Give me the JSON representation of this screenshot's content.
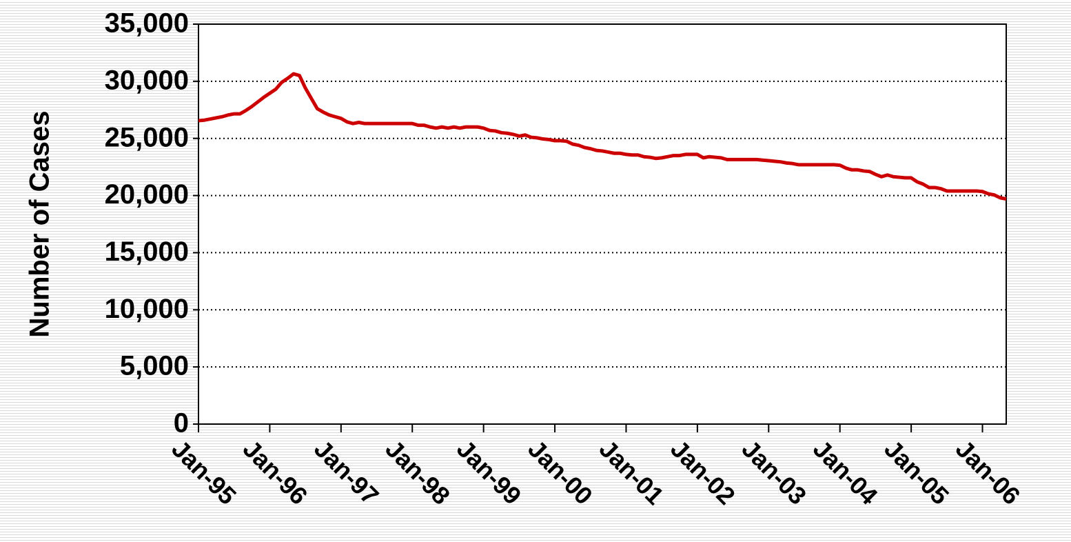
{
  "chart_data": {
    "type": "line",
    "y_label": "Number of Cases",
    "categories": [
      "Jan-95",
      null,
      null,
      null,
      null,
      null,
      null,
      null,
      null,
      null,
      null,
      null,
      "Jan-96",
      null,
      null,
      null,
      null,
      null,
      null,
      null,
      null,
      null,
      null,
      null,
      "Jan-97",
      null,
      null,
      null,
      null,
      null,
      null,
      null,
      null,
      null,
      null,
      null,
      "Jan-98",
      null,
      null,
      null,
      null,
      null,
      null,
      null,
      null,
      null,
      null,
      null,
      "Jan-99",
      null,
      null,
      null,
      null,
      null,
      null,
      null,
      null,
      null,
      null,
      null,
      "Jan-00",
      null,
      null,
      null,
      null,
      null,
      null,
      null,
      null,
      null,
      null,
      null,
      "Jan-01",
      null,
      null,
      null,
      null,
      null,
      null,
      null,
      null,
      null,
      null,
      null,
      "Jan-02",
      null,
      null,
      null,
      null,
      null,
      null,
      null,
      null,
      null,
      null,
      null,
      "Jan-03",
      null,
      null,
      null,
      null,
      null,
      null,
      null,
      null,
      null,
      null,
      null,
      "Jan-04",
      null,
      null,
      null,
      null,
      null,
      null,
      null,
      null,
      null,
      null,
      null,
      "Jan-05",
      null,
      null,
      null,
      null,
      null,
      null,
      null,
      null,
      null,
      null,
      null,
      "Jan-06",
      null,
      null,
      null,
      null
    ],
    "series": [
      {
        "color": "#cc0000",
        "values": [
          26550,
          26600,
          26700,
          26800,
          26900,
          27050,
          27150,
          27150,
          27450,
          27800,
          28200,
          28600,
          28950,
          29300,
          29900,
          30250,
          30650,
          30500,
          29400,
          28500,
          27600,
          27300,
          27050,
          26900,
          26750,
          26450,
          26300,
          26400,
          26300,
          26300,
          26300,
          26300,
          26300,
          26300,
          26300,
          26300,
          26300,
          26150,
          26150,
          26000,
          25900,
          26000,
          25900,
          26000,
          25900,
          26000,
          26000,
          26000,
          25900,
          25700,
          25650,
          25500,
          25450,
          25350,
          25200,
          25300,
          25100,
          25050,
          24950,
          24900,
          24800,
          24800,
          24750,
          24500,
          24400,
          24200,
          24100,
          23950,
          23900,
          23800,
          23700,
          23700,
          23600,
          23550,
          23550,
          23400,
          23350,
          23250,
          23300,
          23400,
          23500,
          23500,
          23600,
          23600,
          23600,
          23300,
          23400,
          23350,
          23300,
          23150,
          23150,
          23150,
          23150,
          23150,
          23150,
          23100,
          23050,
          23000,
          22950,
          22850,
          22800,
          22700,
          22700,
          22700,
          22700,
          22700,
          22700,
          22700,
          22650,
          22400,
          22250,
          22250,
          22150,
          22100,
          21850,
          21650,
          21800,
          21650,
          21600,
          21550,
          21550,
          21200,
          21000,
          20700,
          20700,
          20600,
          20400,
          20400,
          20400,
          20400,
          20400,
          20400,
          20350,
          20150,
          20050,
          19800,
          19700
        ]
      }
    ],
    "ylim": [
      0,
      35000
    ],
    "yticks": [
      0,
      {
        "value": 5000,
        "label": "5,000"
      },
      {
        "value": 10000,
        "label": "10,000"
      },
      {
        "value": 15000,
        "label": "15,000"
      },
      {
        "value": 20000,
        "label": "20,000"
      },
      {
        "value": 25000,
        "label": "25,000"
      },
      {
        "value": 30000,
        "label": "30,000"
      },
      {
        "value": 35000,
        "label": "35,000"
      }
    ],
    "grid": true
  }
}
